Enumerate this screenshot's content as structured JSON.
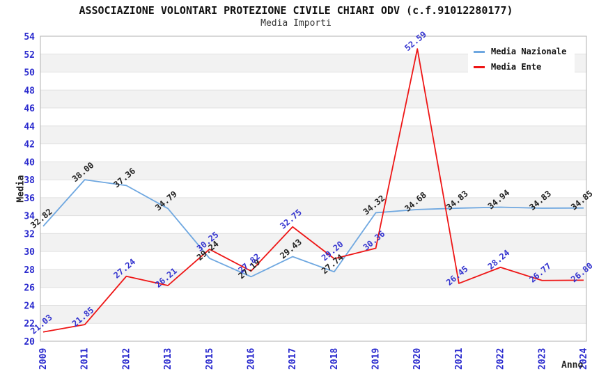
{
  "chart_data": {
    "type": "line",
    "title": "ASSOCIAZIONE VOLONTARI PROTEZIONE CIVILE CHIARI ODV (c.f.91012280177)",
    "subtitle": "Media Importi",
    "xlabel": "Anno",
    "ylabel": "Media",
    "categories": [
      "2009",
      "2011",
      "2012",
      "2013",
      "2015",
      "2016",
      "2017",
      "2018",
      "2019",
      "2020",
      "2021",
      "2022",
      "2023",
      "2024"
    ],
    "series": [
      {
        "name": "Media Nazionale",
        "color": "#6ea7e0",
        "label_color": "#222222",
        "values": [
          32.82,
          38.0,
          37.36,
          34.79,
          29.24,
          27.19,
          29.43,
          27.74,
          34.32,
          34.68,
          34.83,
          34.94,
          34.83,
          34.85
        ]
      },
      {
        "name": "Media Ente",
        "color": "#ee1515",
        "label_color": "#3434cf",
        "values": [
          21.03,
          21.85,
          27.24,
          26.21,
          30.25,
          27.82,
          32.75,
          29.2,
          30.36,
          52.59,
          26.45,
          28.24,
          26.77,
          26.8
        ]
      }
    ],
    "ylim": [
      20,
      54
    ],
    "ytick_step": 2,
    "axis_tick_color": "#2a2ace",
    "band_colors": [
      "#ffffff",
      "#f2f2f2"
    ],
    "gridline_color": "#e0e0e0",
    "border_color": "#b0b0b0",
    "grid": "alternating-horizontal-bands",
    "legend_position": "top-right",
    "data_label_rotation_deg": -40
  }
}
